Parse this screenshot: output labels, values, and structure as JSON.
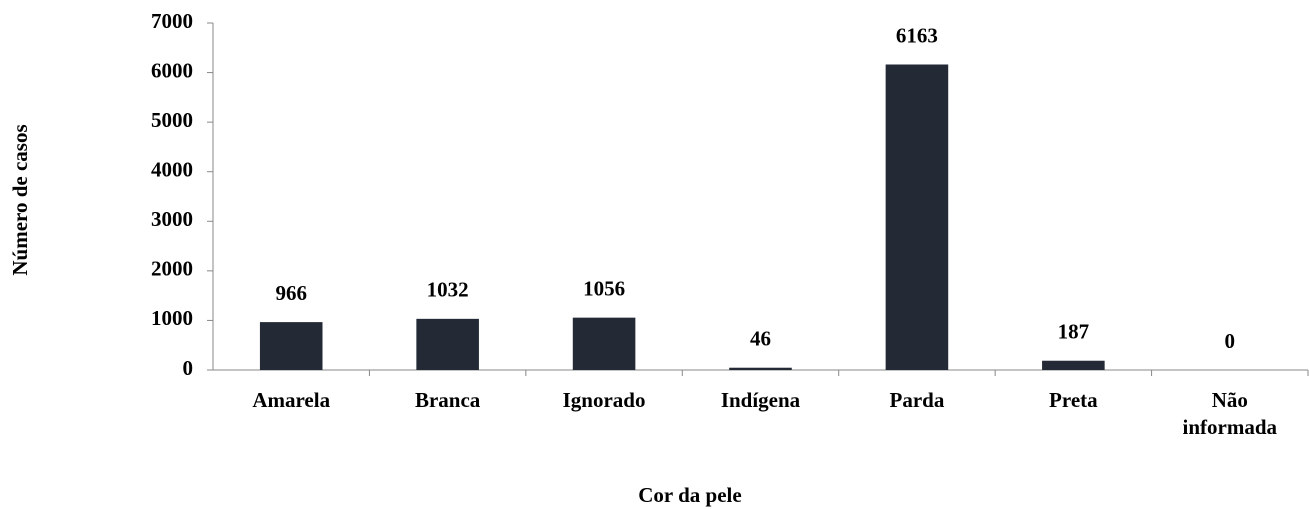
{
  "chart_data": {
    "type": "bar",
    "x_label": "Cor da pele",
    "y_label": "Número de casos",
    "categories": [
      "Amarela",
      "Branca",
      "Ignorado",
      "Indígena",
      "Parda",
      "Preta",
      "Não informada"
    ],
    "values": [
      966,
      1032,
      1056,
      46,
      6163,
      187,
      0
    ],
    "color": "#232a35",
    "ylim": [
      0,
      7000
    ],
    "yticks": [
      0,
      1000,
      2000,
      3000,
      4000,
      5000,
      6000,
      7000
    ],
    "grid": false
  }
}
